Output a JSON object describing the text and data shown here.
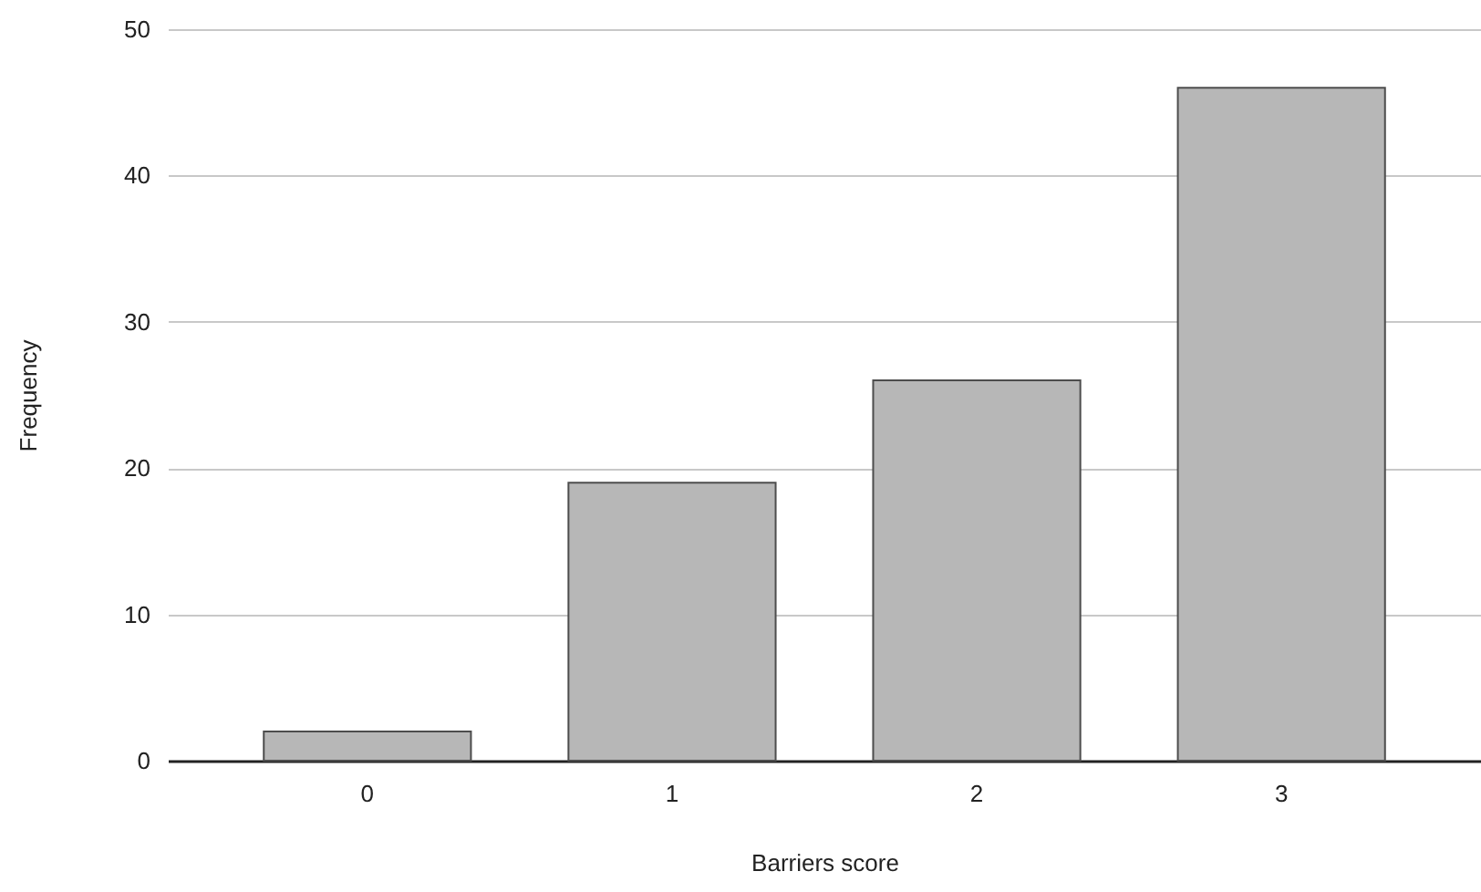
{
  "chart_data": {
    "type": "bar",
    "xlabel": "Barriers score",
    "ylabel": "Frequency",
    "categories": [
      "0",
      "1",
      "2",
      "3"
    ],
    "values": [
      2,
      19,
      26,
      46
    ],
    "color": "#b7b7b7",
    "ylim": [
      0,
      50
    ],
    "yticks": [
      0,
      10,
      20,
      30,
      40,
      50
    ],
    "grid": "y"
  }
}
